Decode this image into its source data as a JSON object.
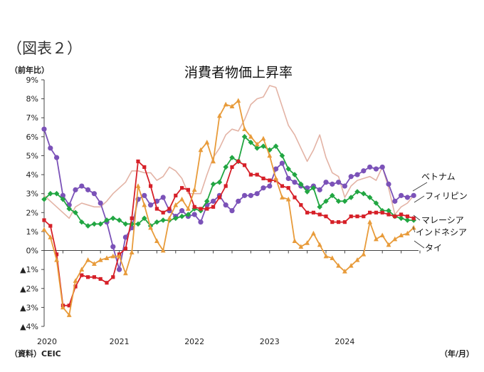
{
  "figure_label": "（図表２）",
  "chart_data": {
    "type": "line",
    "title": "消費者物価上昇率",
    "ylabel": "（前年比）",
    "xlabel": "（年/月）",
    "source": "（資料）CEIC",
    "ylim": [
      -4,
      9
    ],
    "y_ticks": [
      9,
      8,
      7,
      6,
      5,
      4,
      3,
      2,
      1,
      0,
      -1,
      -2,
      -3,
      -4
    ],
    "y_tick_labels": [
      "9%",
      "8%",
      "7%",
      "6%",
      "5%",
      "4%",
      "3%",
      "2%",
      "1%",
      "0%",
      "▲1%",
      "▲2%",
      "▲3%",
      "▲4%"
    ],
    "x_year_labels": [
      "2020",
      "2021",
      "2022",
      "2023",
      "2024"
    ],
    "x_start": "2020-01",
    "grid": false,
    "series": [
      {
        "name": "ベトナム",
        "color": "#7b52b8",
        "marker": "circle",
        "values": [
          6.4,
          5.4,
          4.9,
          2.9,
          2.4,
          3.2,
          3.4,
          3.2,
          3.0,
          2.5,
          1.5,
          0.2,
          -1.0,
          0.7,
          1.2,
          2.7,
          2.9,
          2.4,
          2.6,
          2.8,
          2.1,
          1.8,
          2.1,
          1.8,
          1.9,
          1.5,
          2.4,
          2.6,
          2.9,
          2.4,
          2.1,
          2.6,
          2.9,
          2.9,
          3.0,
          3.3,
          3.4,
          4.3,
          4.6,
          3.8,
          3.6,
          3.4,
          3.3,
          3.4,
          3.2,
          3.6,
          3.5,
          3.6,
          3.4,
          3.9,
          4.0,
          4.2,
          4.4,
          4.3,
          4.4,
          3.5,
          2.6,
          2.9,
          2.8,
          2.9
        ]
      },
      {
        "name": "フィリピン",
        "color": "#e3b3a5",
        "marker": "none",
        "values": [
          2.9,
          2.6,
          2.3,
          2.0,
          1.7,
          2.3,
          2.5,
          2.4,
          2.3,
          2.3,
          2.6,
          3.0,
          3.3,
          3.6,
          4.2,
          4.2,
          4.1,
          4.1,
          3.7,
          3.9,
          4.4,
          4.2,
          3.8,
          3.0,
          3.0,
          3.0,
          4.0,
          4.9,
          5.4,
          6.1,
          6.4,
          6.3,
          6.9,
          7.7,
          8.0,
          8.1,
          8.7,
          8.6,
          7.6,
          6.6,
          6.1,
          5.4,
          4.7,
          5.3,
          6.1,
          4.9,
          4.1,
          3.9,
          2.8,
          3.4,
          3.7,
          3.8,
          3.9,
          3.7,
          4.4,
          3.3,
          1.9,
          2.3,
          2.5,
          2.9
        ]
      },
      {
        "name": "マレーシア",
        "color": "#d62028",
        "marker": "square",
        "values": [
          1.6,
          1.3,
          -0.2,
          -2.9,
          -2.9,
          -1.9,
          -1.3,
          -1.4,
          -1.4,
          -1.5,
          -1.7,
          -1.4,
          -0.2,
          0.1,
          1.7,
          4.7,
          4.4,
          3.4,
          2.2,
          2.0,
          2.2,
          2.9,
          3.3,
          3.2,
          2.3,
          2.2,
          2.2,
          2.3,
          2.8,
          3.4,
          4.4,
          4.7,
          4.5,
          4.0,
          4.0,
          3.8,
          3.7,
          3.7,
          3.4,
          3.3,
          2.8,
          2.4,
          2.0,
          2.0,
          1.9,
          1.8,
          1.5,
          1.5,
          1.5,
          1.8,
          1.8,
          1.8,
          2.0,
          2.0,
          2.0,
          1.9,
          1.8,
          1.9,
          1.8,
          1.7
        ]
      },
      {
        "name": "インドネシア",
        "color": "#21a642",
        "marker": "diamond",
        "values": [
          2.7,
          3.0,
          3.0,
          2.7,
          2.2,
          2.0,
          1.5,
          1.3,
          1.4,
          1.4,
          1.6,
          1.7,
          1.6,
          1.4,
          1.4,
          1.4,
          1.7,
          1.3,
          1.5,
          1.6,
          1.6,
          1.7,
          1.8,
          1.9,
          2.2,
          2.1,
          2.6,
          3.5,
          3.6,
          4.4,
          4.9,
          4.7,
          6.0,
          5.7,
          5.4,
          5.5,
          5.3,
          5.5,
          5.0,
          4.3,
          4.0,
          3.5,
          3.1,
          3.3,
          2.3,
          2.6,
          2.9,
          2.6,
          2.6,
          2.8,
          3.1,
          3.0,
          2.8,
          2.5,
          2.1,
          2.1,
          1.8,
          1.7,
          1.6,
          1.6
        ]
      },
      {
        "name": "タイ",
        "color": "#e89b3a",
        "marker": "triangle",
        "values": [
          1.1,
          0.7,
          -0.5,
          -3.0,
          -3.4,
          -1.6,
          -1.0,
          -0.5,
          -0.7,
          -0.5,
          -0.4,
          -0.3,
          -0.3,
          -1.2,
          -0.1,
          3.4,
          2.4,
          1.2,
          0.5,
          0.0,
          1.7,
          2.4,
          2.7,
          2.2,
          3.2,
          5.3,
          5.7,
          4.7,
          7.1,
          7.7,
          7.6,
          7.9,
          6.4,
          6.0,
          5.6,
          5.9,
          5.0,
          3.8,
          2.8,
          2.7,
          0.5,
          0.2,
          0.4,
          0.9,
          0.3,
          -0.3,
          -0.4,
          -0.8,
          -1.1,
          -0.8,
          -0.5,
          -0.2,
          1.5,
          0.6,
          0.8,
          0.3,
          0.6,
          0.8,
          0.9,
          1.2
        ]
      }
    ]
  }
}
